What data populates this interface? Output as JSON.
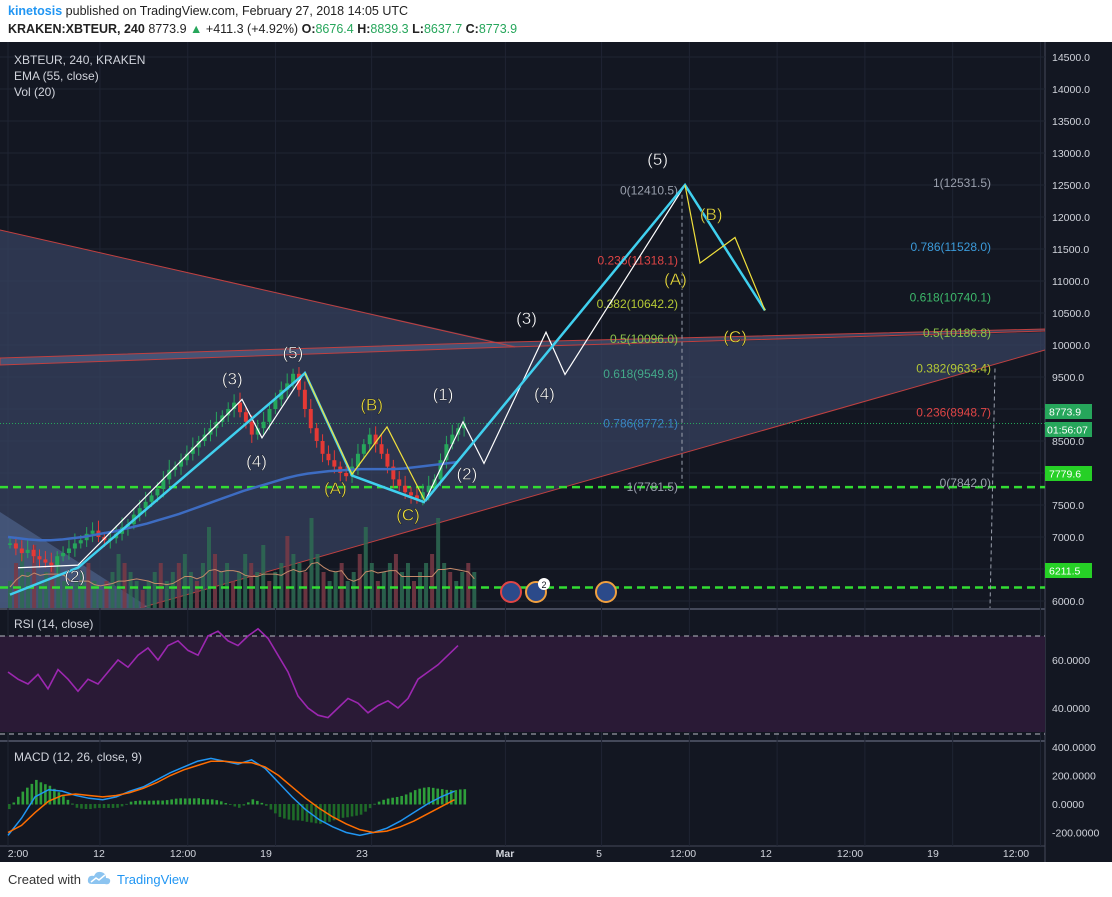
{
  "header": {
    "author": "kinetosis",
    "published_text": "published on TradingView.com, February 27, 2018 14:05 UTC",
    "symbol_line": "KRAKEN:XBTEUR, 240",
    "last_price": "8773.9",
    "change": "+411.3 (+4.92%)",
    "open_label": "O:",
    "open": "8676.4",
    "high_label": "H:",
    "high": "8839.3",
    "low_label": "L:",
    "low": "8637.7",
    "close_label": "C:",
    "close": "8773.9"
  },
  "legend": {
    "symbol": "XBTEUR, 240, KRAKEN",
    "ema": "EMA (55, close)",
    "vol": "Vol (20)"
  },
  "rsi_legend": "RSI (14, close)",
  "macd_legend": "MACD (12, 26, close, 9)",
  "price_badges": {
    "last": "8773.9",
    "countdown": "01:56:07",
    "level_1": "7779.6",
    "level_2": "6211.5"
  },
  "footer": {
    "created_with": "Created with",
    "brand": "TradingView"
  },
  "colors": {
    "accent": "#2196f3",
    "up": "#26a65b",
    "down": "#e53935",
    "wave_cyan": "#40d0ef",
    "wave_yellow": "#f0e03c",
    "wave_white": "#ffffff",
    "dashed_green": "#33dd33",
    "rsi_line": "#9c27b0",
    "macd_line": "#2196f3",
    "signal_line": "#ff6d00"
  },
  "chart_data": {
    "type": "candlestick",
    "symbol": "KRAKEN:XBTEUR",
    "interval": "240",
    "price_axis": {
      "ticks": [
        "14500.0",
        "14000.0",
        "13500.0",
        "13000.0",
        "12500.0",
        "12000.0",
        "11500.0",
        "11000.0",
        "10500.0",
        "10000.0",
        "9500.0",
        "9000.0",
        "8500.0",
        "8000.0",
        "7500.0",
        "7000.0",
        "6500.0",
        "6000.0"
      ],
      "ylim": [
        5650,
        14850
      ]
    },
    "time_axis": {
      "ticks": [
        "2:00",
        "12",
        "12:00",
        "19",
        "23",
        "Mar",
        "5",
        "12:00",
        "12",
        "12:00",
        "19",
        "12:00"
      ],
      "ticks_note": "x positions in bar index",
      "tick_bars": [
        0,
        22,
        43,
        64,
        87,
        119,
        142,
        163,
        184,
        205,
        226,
        247
      ]
    },
    "price_path": {
      "note": "approximate close prices per 4h bar, from start of visible range to last bar",
      "closes": [
        6900,
        6820,
        6750,
        6800,
        6700,
        6650,
        6600,
        6560,
        6700,
        6750,
        6820,
        6900,
        6950,
        7050,
        7100,
        7000,
        6950,
        6980,
        7050,
        7150,
        7200,
        7350,
        7450,
        7550,
        7650,
        7750,
        7900,
        8050,
        8100,
        8200,
        8300,
        8400,
        8500,
        8600,
        8700,
        8800,
        8900,
        9000,
        9100,
        8950,
        8800,
        8600,
        8700,
        8800,
        9000,
        9150,
        9300,
        9400,
        9550,
        9300,
        9000,
        8700,
        8500,
        8300,
        8200,
        8100,
        8000,
        7950,
        8100,
        8300,
        8450,
        8600,
        8450,
        8300,
        8100,
        7900,
        7800,
        7700,
        7650,
        7600,
        7700,
        7800,
        7900,
        8200,
        8450,
        8600,
        8700,
        8774
      ]
    },
    "ema": {
      "name": "EMA (55, close)",
      "values": [
        7000,
        6980,
        6960,
        6950,
        6950,
        6960,
        6980,
        7000,
        7030,
        7060,
        7090,
        7130,
        7170,
        7210,
        7260,
        7310,
        7360,
        7420,
        7480,
        7540,
        7600,
        7660,
        7720,
        7770,
        7820,
        7870,
        7920,
        7960,
        7990,
        8010,
        8030,
        8040,
        8050,
        8060,
        8060,
        8060,
        8060,
        8070,
        8090,
        8110,
        8130,
        8150,
        8170
      ]
    },
    "volume": {
      "name": "Vol (20)",
      "bar_values_relative": [
        0.3,
        0.5,
        0.6,
        0.4,
        0.7,
        0.3,
        0.4,
        0.5,
        0.6,
        0.3,
        0.2,
        0.3,
        0.4,
        0.5,
        0.3,
        0.2,
        0.3,
        0.4,
        0.6,
        0.5,
        0.4,
        0.3,
        0.2,
        0.3,
        0.4,
        0.5,
        0.3,
        0.4,
        0.5,
        0.6,
        0.4,
        0.3,
        0.5,
        0.9,
        0.6,
        0.4,
        0.5,
        0.3,
        0.4,
        0.6,
        0.5,
        0.4,
        0.7,
        0.3,
        0.4,
        0.5,
        0.8,
        0.6,
        0.5,
        0.4,
        1.0,
        0.6,
        0.4,
        0.3,
        0.4,
        0.5,
        0.3,
        0.4,
        0.6,
        0.9,
        0.5,
        0.3,
        0.4,
        0.5,
        0.6,
        0.4,
        0.5,
        0.3,
        0.4,
        0.5,
        0.6,
        1.0,
        0.5,
        0.4,
        0.3,
        0.4,
        0.5,
        0.4
      ]
    },
    "rsi": {
      "name": "RSI (14, close)",
      "ticks": [
        "60.0000",
        "40.0000"
      ],
      "levels": [
        70,
        30
      ],
      "values": [
        55,
        52,
        50,
        54,
        48,
        56,
        52,
        47,
        52,
        50,
        55,
        60,
        57,
        62,
        65,
        60,
        66,
        68,
        64,
        62,
        70,
        72,
        68,
        66,
        70,
        73,
        69,
        62,
        55,
        45,
        40,
        37,
        36,
        40,
        44,
        42,
        38,
        41,
        43,
        40,
        44,
        52,
        55,
        58,
        62,
        66
      ]
    },
    "macd": {
      "name": "MACD (12, 26, close, 9)",
      "ticks": [
        "400.0000",
        "200.0000",
        "0.0000",
        "-200.0000"
      ],
      "macd": [
        -220,
        -100,
        50,
        100,
        90,
        60,
        40,
        30,
        50,
        90,
        120,
        170,
        220,
        260,
        300,
        320,
        300,
        280,
        310,
        250,
        150,
        50,
        -40,
        -110,
        -160,
        -200,
        -220,
        -200,
        -170,
        -120,
        -60,
        0,
        50,
        90
      ],
      "signal": [
        -200,
        -150,
        -60,
        20,
        60,
        70,
        60,
        50,
        60,
        80,
        110,
        150,
        200,
        240,
        270,
        300,
        300,
        290,
        290,
        260,
        200,
        120,
        40,
        -30,
        -90,
        -140,
        -180,
        -200,
        -190,
        -160,
        -120,
        -70,
        -20,
        30
      ]
    },
    "fib_levels_left": [
      {
        "label": "0(12410.5)",
        "price": 12410.5
      },
      {
        "label": "0.236(11318.1)",
        "price": 11318.1
      },
      {
        "label": "0.382(10642.2)",
        "price": 10642.2
      },
      {
        "label": "0.5(10096.0)",
        "price": 10096.0
      },
      {
        "label": "0.618(9549.8)",
        "price": 9549.8
      },
      {
        "label": "0.786(8772.1)",
        "price": 8772.1
      },
      {
        "label": "1(7781.5)",
        "price": 7781.5
      }
    ],
    "fib_levels_right": [
      {
        "label": "1(12531.5)",
        "price": 12531.5
      },
      {
        "label": "0.786(11528.0)",
        "price": 11528.0
      },
      {
        "label": "0.618(10740.1)",
        "price": 10740.1
      },
      {
        "label": "0.5(10186.8)",
        "price": 10186.8
      },
      {
        "label": "0.382(9633.4)",
        "price": 9633.4
      },
      {
        "label": "0.236(8948.7)",
        "price": 8948.7
      },
      {
        "label": "0(7842.0)",
        "price": 7842.0
      }
    ],
    "wave_labels": [
      {
        "text": "(2)",
        "color": "white",
        "bar": 12,
        "price": 6300
      },
      {
        "text": "(3)",
        "color": "white",
        "bar": 38,
        "price": 9380
      },
      {
        "text": "(4)",
        "color": "white",
        "bar": 42,
        "price": 8090
      },
      {
        "text": "(5)",
        "color": "white",
        "bar": 48,
        "price": 9790
      },
      {
        "text": "(A)",
        "color": "yellow",
        "bar": 55,
        "price": 7670
      },
      {
        "text": "(B)",
        "color": "yellow",
        "bar": 61,
        "price": 8980
      },
      {
        "text": "(C)",
        "color": "yellow",
        "bar": 67,
        "price": 7260
      },
      {
        "text": "(1)",
        "color": "white",
        "bar": 74,
        "price": 9140
      },
      {
        "text": "(2)",
        "color": "white",
        "bar": 78,
        "price": 7900
      },
      {
        "text": "(3)",
        "color": "white",
        "bar": 88,
        "price": 10330
      },
      {
        "text": "(4)",
        "color": "white",
        "bar": 91,
        "price": 9150
      },
      {
        "text": "(5)",
        "color": "white",
        "bar": 110,
        "price": 12810
      },
      {
        "text": "(A)",
        "color": "yellow",
        "bar": 113,
        "price": 10940
      },
      {
        "text": "(B)",
        "color": "yellow",
        "bar": 119,
        "price": 11950
      },
      {
        "text": "(C)",
        "color": "yellow",
        "bar": 123,
        "price": 10040
      }
    ],
    "horizontal_levels": [
      7779.6,
      6211.5
    ]
  }
}
